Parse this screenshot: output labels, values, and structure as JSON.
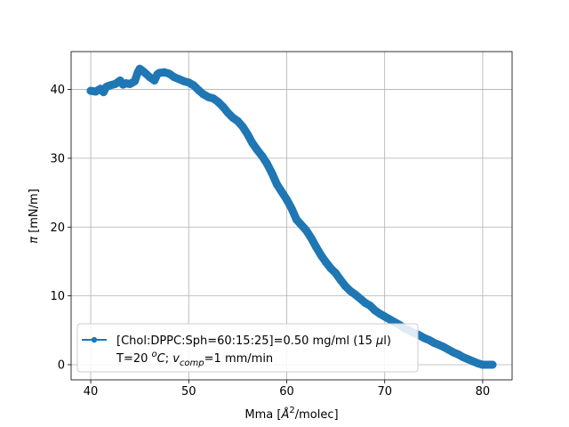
{
  "chart_data": {
    "type": "line",
    "x_range": [
      38.0,
      83.0
    ],
    "y_range": [
      -2.2,
      45.5
    ],
    "xticks": [
      40,
      50,
      60,
      70,
      80
    ],
    "yticks": [
      0,
      10,
      20,
      30,
      40
    ],
    "grid": true,
    "legend_position": "lower-left",
    "xlabel_prefix": "Mma [",
    "xlabel_unit": "Å",
    "xlabel_sup": "2",
    "xlabel_suffix": "/molec]",
    "ylabel_symbol": "π",
    "ylabel_unit": " [mN/m]",
    "legend_line1_prefix": "[Chol:DPPC:Sph=60:15:25]=0.50 mg/ml (15 ",
    "legend_line1_mu": "μ",
    "legend_line1_suffix": "l)",
    "legend_line2_a": "T=20 ",
    "legend_line2_deg": "o",
    "legend_line2_C": "C",
    "legend_line2_b": "; ",
    "legend_line2_v": "v",
    "legend_line2_sub": "comp",
    "legend_line2_c": "=1 mm/min",
    "series_color": "#1f77b4",
    "series": [
      {
        "x": [
          40.0,
          40.5,
          41.0,
          41.3,
          41.6,
          42.0,
          42.5,
          43.0,
          43.3,
          43.6,
          44.0,
          44.5,
          44.8,
          45.0,
          45.3,
          45.7,
          46.0,
          46.5,
          46.8,
          47.0,
          47.5,
          48.0,
          48.5,
          49.0,
          49.5,
          50.0,
          50.5,
          51.0,
          51.5,
          52.0,
          52.5,
          53.0,
          53.5,
          54.0,
          54.5,
          55.0,
          55.5,
          56.0,
          56.5,
          57.0,
          57.5,
          58.0,
          58.5,
          59.0,
          59.5,
          60.0,
          60.5,
          61.0,
          61.5,
          62.0,
          62.5,
          63.0,
          63.5,
          64.0,
          64.5,
          65.0,
          65.5,
          66.0,
          66.5,
          67.0,
          67.5,
          68.0,
          68.5,
          69.0,
          69.5,
          70.0,
          70.5,
          71.0,
          71.5,
          72.0,
          72.5,
          73.0,
          73.5,
          74.0,
          74.5,
          75.0,
          75.5,
          76.0,
          76.5,
          77.0,
          77.5,
          78.0,
          78.5,
          79.0,
          79.5,
          80.0,
          80.5,
          81.0
        ],
        "y": [
          39.8,
          39.7,
          40.1,
          39.6,
          40.4,
          40.6,
          40.8,
          41.3,
          40.7,
          40.9,
          40.8,
          41.2,
          42.5,
          43.0,
          42.7,
          42.2,
          41.8,
          41.3,
          42.2,
          42.4,
          42.5,
          42.3,
          41.8,
          41.5,
          41.2,
          41.0,
          40.6,
          39.9,
          39.3,
          38.9,
          38.7,
          38.2,
          37.5,
          36.6,
          35.9,
          35.4,
          34.6,
          33.5,
          32.2,
          31.2,
          30.3,
          29.2,
          27.8,
          26.2,
          25.1,
          24.0,
          22.7,
          21.1,
          20.3,
          19.5,
          18.4,
          17.1,
          15.9,
          14.9,
          14.0,
          13.3,
          12.3,
          11.4,
          10.7,
          10.2,
          9.6,
          9.0,
          8.6,
          7.9,
          7.4,
          7.0,
          6.6,
          6.2,
          5.8,
          5.3,
          5.0,
          4.6,
          4.3,
          3.9,
          3.6,
          3.2,
          2.9,
          2.6,
          2.2,
          1.8,
          1.5,
          1.1,
          0.8,
          0.5,
          0.2,
          0.0,
          0.0,
          0.0
        ]
      }
    ]
  }
}
